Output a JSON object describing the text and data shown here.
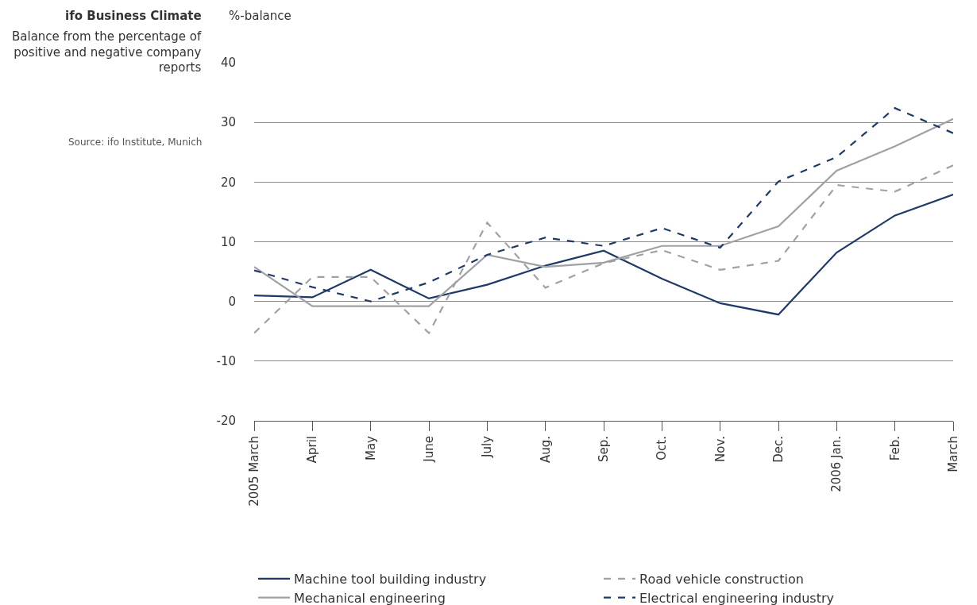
{
  "chart_data": {
    "type": "line",
    "title": "ifo Business Climate",
    "subtitle": "Balance from the percentage of positive and negative company reports",
    "annotations": [
      "Source: ifo Institute, Munich"
    ],
    "ylabel": "%-balance",
    "categories": [
      "2005 March",
      "April",
      "May",
      "June",
      "July",
      "Aug.",
      "Sep.",
      "Oct.",
      "Nov.",
      "Dec.",
      "2006 Jan.",
      "Feb.",
      "March"
    ],
    "series": [
      {
        "name": "Machine tool building industry",
        "color": "#1f3a68",
        "line_style": "solid",
        "values": [
          1.0,
          0.7,
          5.3,
          0.5,
          2.8,
          6.0,
          8.5,
          3.8,
          -0.3,
          -2.2,
          8.2,
          14.4,
          17.9
        ]
      },
      {
        "name": "Road vehicle construction",
        "color": "#a0a1a5",
        "line_style": "dashed",
        "values": [
          -5.3,
          4.1,
          4.1,
          -5.3,
          13.2,
          2.3,
          6.4,
          8.6,
          5.3,
          6.8,
          19.5,
          18.4,
          22.8
        ]
      },
      {
        "name": "Mechanical engineering",
        "color": "#a0a1a5",
        "line_style": "solid",
        "values": [
          5.8,
          -0.8,
          -0.8,
          -0.8,
          7.8,
          5.8,
          6.5,
          9.3,
          9.3,
          12.6,
          21.9,
          26.0,
          30.6
        ]
      },
      {
        "name": "Electrical engineering industry",
        "color": "#1f3a68",
        "line_style": "dashed",
        "values": [
          5.2,
          2.4,
          0.0,
          3.2,
          7.8,
          10.7,
          9.3,
          12.3,
          9.0,
          20.1,
          24.2,
          32.4,
          28.2
        ]
      }
    ],
    "ylim": [
      -20,
      40
    ],
    "yticks": [
      -20,
      -10,
      0,
      10,
      20,
      30,
      40
    ],
    "grid": "y",
    "legend": "bottom left",
    "marker": "none"
  }
}
